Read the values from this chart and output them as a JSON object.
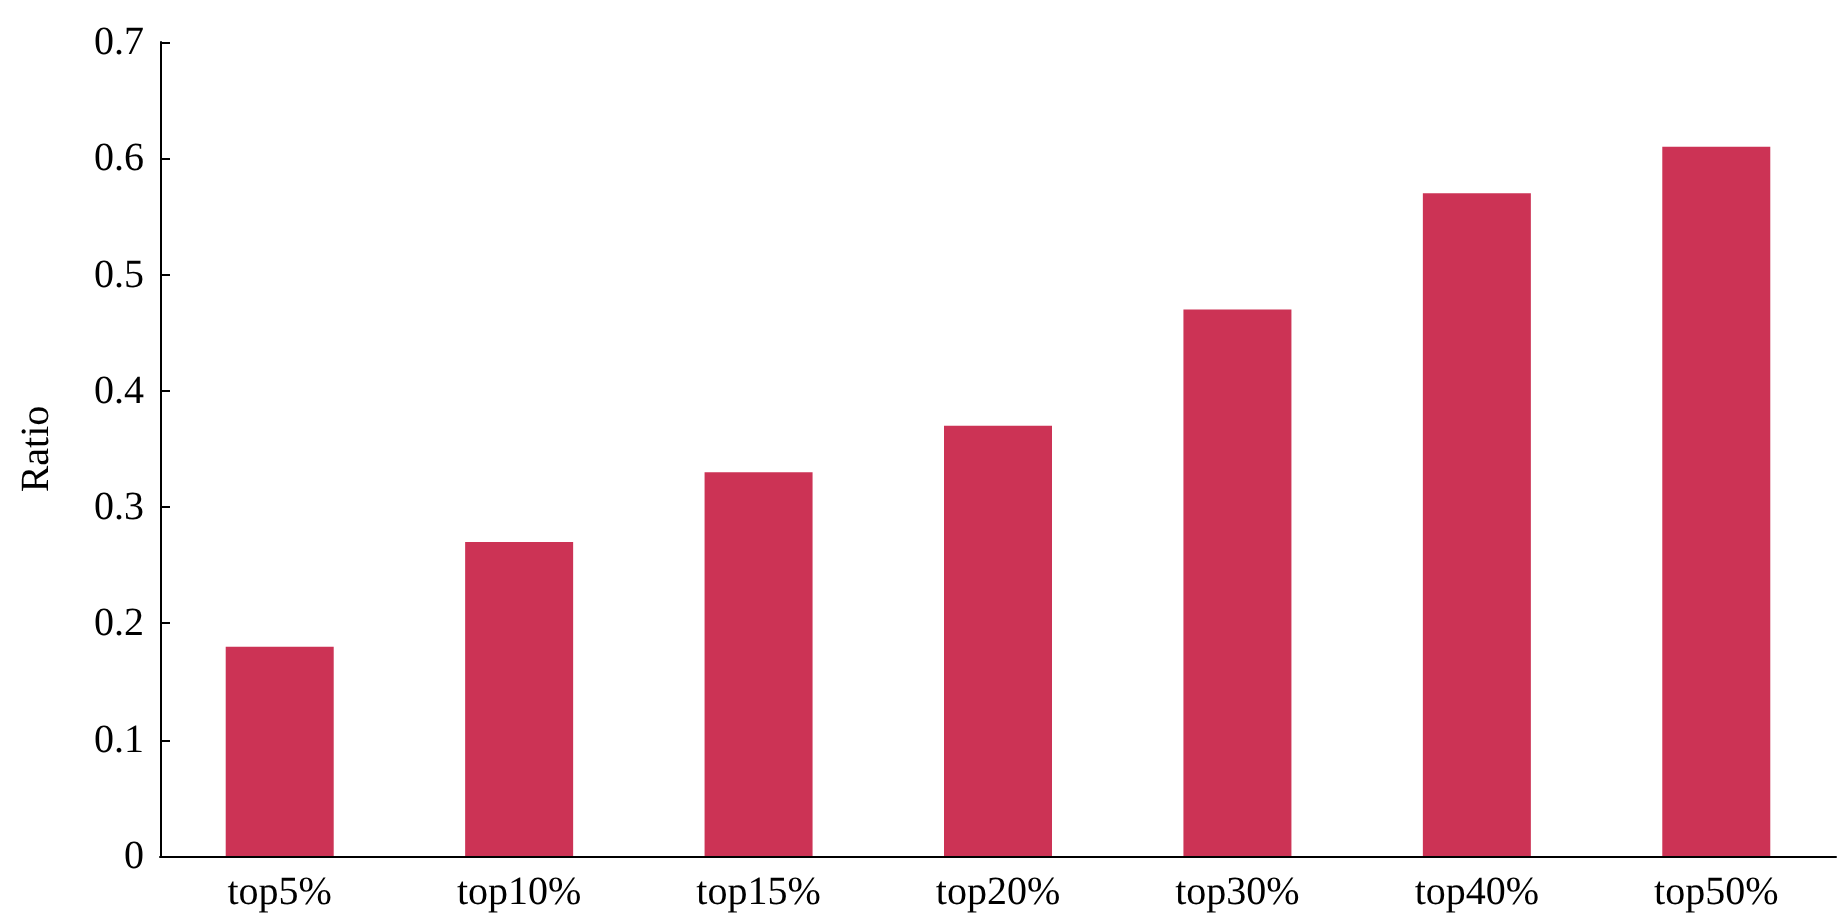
{
  "chart_data": {
    "type": "bar",
    "ylabel": "Ratio",
    "categories": [
      "top5%",
      "top10%",
      "top15%",
      "top20%",
      "top30%",
      "top40%",
      "top50%"
    ],
    "values": [
      0.18,
      0.27,
      0.33,
      0.37,
      0.47,
      0.57,
      0.61
    ],
    "color": "#cc3355",
    "ylim": [
      0,
      0.7
    ],
    "yticks": [
      0,
      0.1,
      0.2,
      0.3,
      0.4,
      0.5,
      0.6,
      0.7
    ],
    "grid": false
  }
}
